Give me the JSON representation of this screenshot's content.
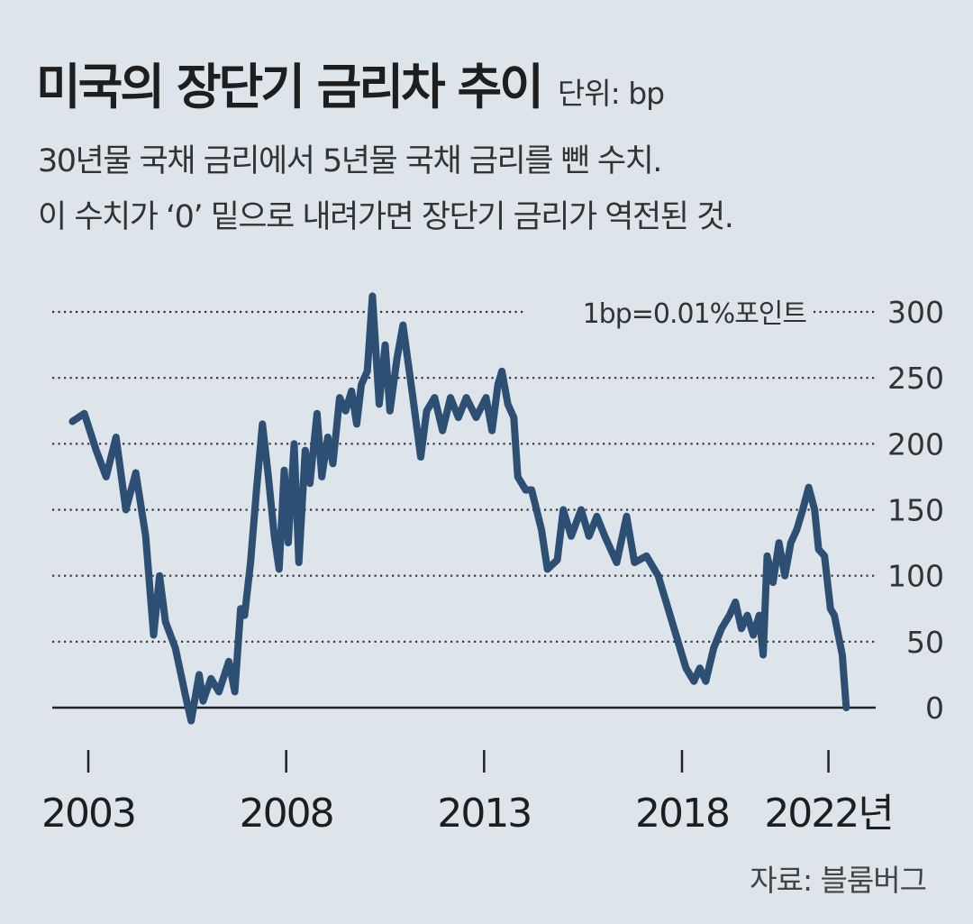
{
  "header": {
    "title": "미국의 장단기 금리차 추이",
    "unit": "단위: bp",
    "desc_line1": "30년물 국채 금리에서 5년물 국채 금리를 뺀 수치.",
    "desc_line2": "이 수치가 ‘0’ 밑으로 내려가면 장단기 금리가 역전된 것."
  },
  "footer": {
    "source": "자료: 블룸버그"
  },
  "colors": {
    "background": "#dde4ea",
    "line": "#2e4f74",
    "grid": "#333333",
    "baseline": "#222222"
  },
  "chart_data": {
    "type": "line",
    "title": "미국의 장단기 금리차 추이",
    "unit": "bp",
    "annotation": "1bp=0.01%포인트",
    "ylim": [
      0,
      300
    ],
    "y_ticks": [
      0,
      50,
      100,
      150,
      200,
      250,
      300
    ],
    "x_ticks": [
      {
        "label": "2003",
        "x": 2003
      },
      {
        "label": "2008",
        "x": 2008
      },
      {
        "label": "2013",
        "x": 2013
      },
      {
        "label": "2018",
        "x": 2018
      },
      {
        "label": "2022년",
        "x": 2021.7
      }
    ],
    "grid": "horizontal dotted",
    "series": [
      {
        "values": [
          [
            2002.6,
            217
          ],
          [
            2002.9,
            223
          ],
          [
            2003.2,
            195
          ],
          [
            2003.45,
            175
          ],
          [
            2003.7,
            205
          ],
          [
            2003.95,
            150
          ],
          [
            2004.2,
            178
          ],
          [
            2004.45,
            130
          ],
          [
            2004.65,
            55
          ],
          [
            2004.8,
            100
          ],
          [
            2004.95,
            65
          ],
          [
            2005.2,
            45
          ],
          [
            2005.45,
            10
          ],
          [
            2005.6,
            -10
          ],
          [
            2005.8,
            25
          ],
          [
            2005.9,
            5
          ],
          [
            2006.1,
            22
          ],
          [
            2006.3,
            12
          ],
          [
            2006.55,
            35
          ],
          [
            2006.7,
            12
          ],
          [
            2006.85,
            75
          ],
          [
            2006.95,
            70
          ],
          [
            2007.1,
            110
          ],
          [
            2007.25,
            165
          ],
          [
            2007.4,
            215
          ],
          [
            2007.55,
            175
          ],
          [
            2007.7,
            130
          ],
          [
            2007.82,
            105
          ],
          [
            2007.95,
            180
          ],
          [
            2008.05,
            125
          ],
          [
            2008.2,
            200
          ],
          [
            2008.32,
            110
          ],
          [
            2008.48,
            195
          ],
          [
            2008.6,
            170
          ],
          [
            2008.78,
            223
          ],
          [
            2008.9,
            175
          ],
          [
            2009.05,
            205
          ],
          [
            2009.18,
            185
          ],
          [
            2009.35,
            235
          ],
          [
            2009.5,
            225
          ],
          [
            2009.65,
            240
          ],
          [
            2009.78,
            215
          ],
          [
            2009.9,
            245
          ],
          [
            2010.05,
            255
          ],
          [
            2010.18,
            312
          ],
          [
            2010.35,
            230
          ],
          [
            2010.5,
            275
          ],
          [
            2010.62,
            225
          ],
          [
            2010.8,
            265
          ],
          [
            2010.95,
            290
          ],
          [
            2011.2,
            235
          ],
          [
            2011.4,
            190
          ],
          [
            2011.55,
            225
          ],
          [
            2011.75,
            235
          ],
          [
            2011.95,
            210
          ],
          [
            2012.15,
            235
          ],
          [
            2012.35,
            220
          ],
          [
            2012.55,
            235
          ],
          [
            2012.8,
            220
          ],
          [
            2013.05,
            235
          ],
          [
            2013.2,
            210
          ],
          [
            2013.35,
            245
          ],
          [
            2013.45,
            255
          ],
          [
            2013.6,
            230
          ],
          [
            2013.75,
            220
          ],
          [
            2013.85,
            175
          ],
          [
            2014.05,
            165
          ],
          [
            2014.2,
            165
          ],
          [
            2014.45,
            135
          ],
          [
            2014.6,
            105
          ],
          [
            2014.85,
            112
          ],
          [
            2015.0,
            150
          ],
          [
            2015.2,
            130
          ],
          [
            2015.45,
            150
          ],
          [
            2015.65,
            130
          ],
          [
            2015.85,
            145
          ],
          [
            2016.05,
            130
          ],
          [
            2016.35,
            110
          ],
          [
            2016.6,
            145
          ],
          [
            2016.8,
            110
          ],
          [
            2017.1,
            115
          ],
          [
            2017.4,
            100
          ],
          [
            2017.6,
            80
          ],
          [
            2017.8,
            60
          ],
          [
            2017.95,
            45
          ],
          [
            2018.1,
            30
          ],
          [
            2018.3,
            20
          ],
          [
            2018.45,
            30
          ],
          [
            2018.6,
            20
          ],
          [
            2018.8,
            45
          ],
          [
            2019.0,
            60
          ],
          [
            2019.2,
            70
          ],
          [
            2019.35,
            80
          ],
          [
            2019.5,
            60
          ],
          [
            2019.65,
            70
          ],
          [
            2019.8,
            55
          ],
          [
            2019.95,
            70
          ],
          [
            2020.05,
            40
          ],
          [
            2020.15,
            115
          ],
          [
            2020.3,
            95
          ],
          [
            2020.45,
            125
          ],
          [
            2020.6,
            100
          ],
          [
            2020.75,
            125
          ],
          [
            2020.9,
            135
          ],
          [
            2021.05,
            150
          ],
          [
            2021.2,
            167
          ],
          [
            2021.35,
            150
          ],
          [
            2021.45,
            120
          ],
          [
            2021.6,
            115
          ],
          [
            2021.75,
            75
          ],
          [
            2021.85,
            70
          ],
          [
            2021.95,
            55
          ],
          [
            2022.05,
            40
          ],
          [
            2022.15,
            0
          ]
        ]
      }
    ]
  }
}
